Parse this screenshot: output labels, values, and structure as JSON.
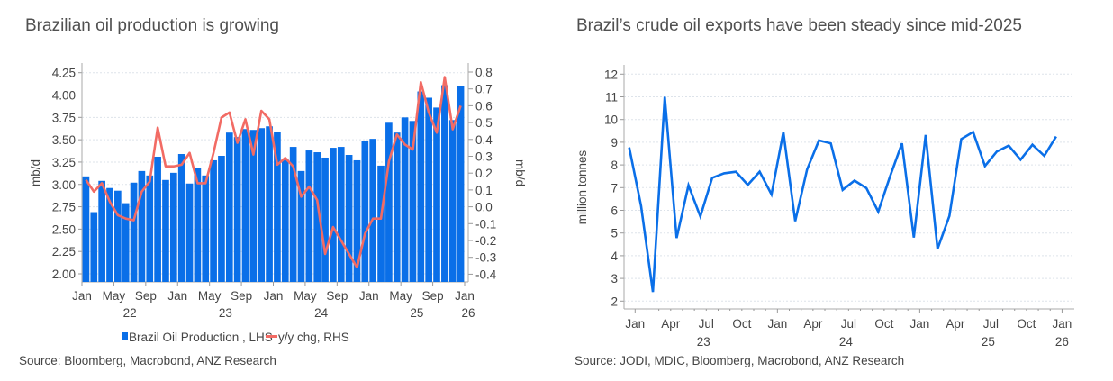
{
  "chart_data": [
    {
      "type": "bar+line",
      "title": "Brazilian oil production is growing",
      "ylabel": "mb/d",
      "y2label": "mb/d",
      "ylim": [
        1.875,
        4.35
      ],
      "y2lim": [
        -0.44,
        0.84
      ],
      "yticks": [
        "4.25",
        "4.00",
        "3.75",
        "3.50",
        "3.25",
        "3.00",
        "2.75",
        "2.50",
        "2.25",
        "2.00"
      ],
      "y2ticks": [
        "0.8",
        "0.7",
        "0.6",
        "0.5",
        "0.4",
        "0.3",
        "0.2",
        "0.1",
        "0.0",
        "-0.1",
        "-0.2",
        "-0.3",
        "-0.4"
      ],
      "xticks": [
        "Jan",
        "May",
        "Sep",
        "Jan",
        "May",
        "Sep",
        "Jan",
        "May",
        "Sep",
        "Jan",
        "May",
        "Sep",
        "Jan"
      ],
      "xyears": [
        "22",
        "23",
        "24",
        "25",
        "26"
      ],
      "grid": true,
      "legend_position": "bottom",
      "x_start": "2022-01",
      "x_end": "2025-12",
      "series": [
        {
          "name": "Brazil Oil Production , LHS",
          "type": "bar",
          "color": "#0a6fe8",
          "values": [
            3.09,
            2.69,
            3.04,
            2.96,
            2.93,
            2.79,
            3.02,
            3.15,
            3.1,
            3.31,
            3.05,
            3.13,
            3.34,
            3.01,
            3.18,
            3.1,
            3.27,
            3.32,
            3.58,
            3.53,
            3.62,
            3.61,
            3.63,
            3.65,
            3.59,
            3.29,
            3.42,
            3.15,
            3.38,
            3.36,
            3.3,
            3.41,
            3.42,
            3.33,
            3.27,
            3.49,
            3.51,
            3.21,
            3.69,
            3.58,
            3.75,
            3.71,
            4.04,
            3.97,
            3.86,
            4.11,
            3.72,
            4.1
          ]
        },
        {
          "name": "y/y chg, RHS",
          "type": "line",
          "color": "#f26b64",
          "values": [
            0.16,
            0.09,
            0.14,
            0.03,
            -0.05,
            -0.07,
            -0.08,
            0.09,
            0.15,
            0.47,
            0.24,
            0.24,
            0.25,
            0.32,
            0.14,
            0.14,
            0.32,
            0.53,
            0.56,
            0.38,
            0.52,
            0.31,
            0.57,
            0.52,
            0.25,
            0.29,
            0.24,
            0.06,
            0.12,
            0.04,
            -0.28,
            -0.12,
            -0.2,
            -0.28,
            -0.36,
            -0.16,
            -0.07,
            -0.07,
            0.27,
            0.43,
            0.37,
            0.34,
            0.74,
            0.56,
            0.44,
            0.77,
            0.46,
            0.6
          ]
        }
      ],
      "source": "Source:  Bloomberg, Macrobond, ANZ Research"
    },
    {
      "type": "line",
      "title": "Brazil’s crude oil exports have been steady since mid-2025",
      "ylabel": "million tonnes",
      "ylim": [
        1.9,
        12.3
      ],
      "yticks": [
        "12",
        "11",
        "10",
        "9",
        "8",
        "7",
        "6",
        "5",
        "4",
        "3",
        "2"
      ],
      "xticks": [
        "Jan",
        "Apr",
        "Jul",
        "Oct",
        "Jan",
        "Apr",
        "Jul",
        "Oct",
        "Jan",
        "Apr",
        "Jul",
        "Oct",
        "Jan"
      ],
      "xyears": [
        "23",
        "24",
        "25",
        "26"
      ],
      "grid": true,
      "x_start": "2022-12",
      "x_end": "2025-12",
      "series": [
        {
          "color": "#0a6fe8",
          "values": [
            8.77,
            6.2,
            2.4,
            11.0,
            4.78,
            7.1,
            5.73,
            7.43,
            7.63,
            7.7,
            7.12,
            7.7,
            6.7,
            9.45,
            5.52,
            7.8,
            9.08,
            8.95,
            6.9,
            7.31,
            6.98,
            5.94,
            7.5,
            8.95,
            4.8,
            9.32,
            4.3,
            5.75,
            9.14,
            9.45,
            7.95,
            8.59,
            8.85,
            8.23,
            8.89,
            8.4,
            9.25
          ]
        }
      ],
      "source": "Source: JODI, MDIC, Bloomberg, Macrobond, ANZ Research"
    }
  ]
}
